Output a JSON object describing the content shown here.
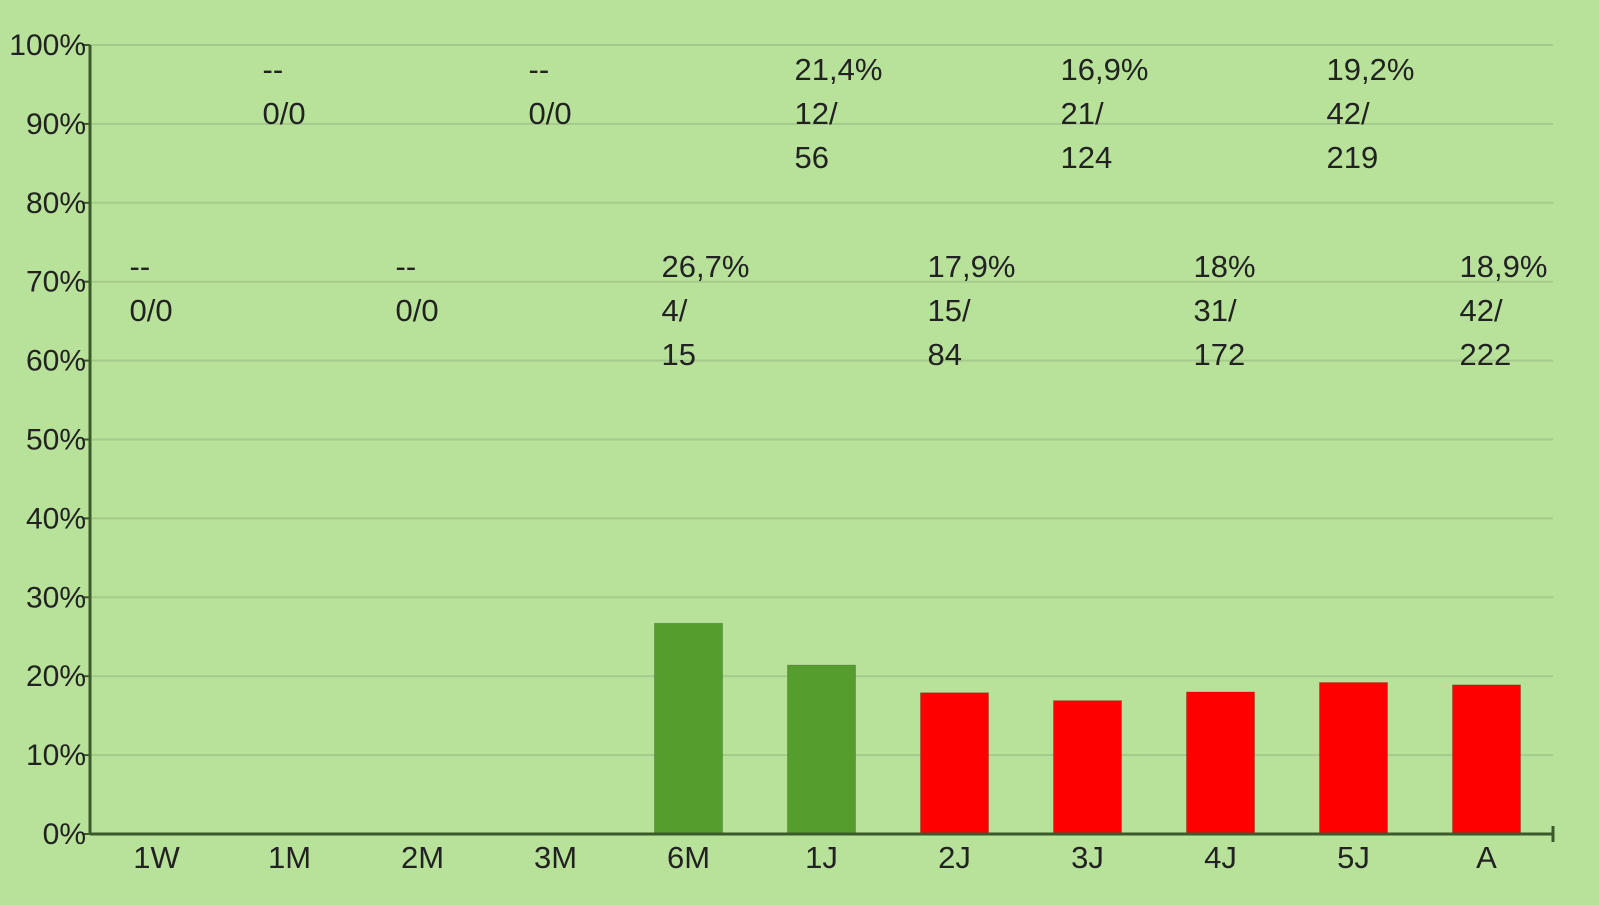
{
  "colors": {
    "background": "#b8e29a",
    "grid": "#a6c98c",
    "axis": "#3b5a2a",
    "bar_good": "#559e2e",
    "bar_bad": "#ff0000",
    "text": "#222222"
  },
  "chart_data": {
    "type": "bar",
    "categories": [
      "1W",
      "1M",
      "2M",
      "3M",
      "6M",
      "1J",
      "2J",
      "3J",
      "4J",
      "5J",
      "A"
    ],
    "values": [
      0,
      0,
      0,
      0,
      26.7,
      21.4,
      17.9,
      16.9,
      18,
      19.2,
      18.9
    ],
    "bar_status": [
      "none",
      "none",
      "none",
      "none",
      "good",
      "good",
      "bad",
      "bad",
      "bad",
      "bad",
      "bad"
    ],
    "percent_labels": [
      "--",
      "--",
      "--",
      "--",
      "26,7%",
      "21,4%",
      "17,9%",
      "16,9%",
      "18%",
      "19,2%",
      "18,9%"
    ],
    "ratio_labels": [
      "0/0",
      "0/0",
      "0/0",
      "0/0",
      "4/\n15",
      "12/\n56",
      "15/\n84",
      "21/\n124",
      "31/\n172",
      "42/\n219",
      "42/\n222"
    ],
    "label_rows": [
      "lower",
      "upper",
      "lower",
      "upper",
      "lower",
      "upper",
      "lower",
      "upper",
      "lower",
      "upper",
      "lower"
    ],
    "yticks": [
      "0%",
      "10%",
      "20%",
      "30%",
      "40%",
      "50%",
      "60%",
      "70%",
      "80%",
      "90%",
      "100%"
    ],
    "ylim": [
      0,
      100
    ],
    "grid": true,
    "title": "",
    "xlabel": "",
    "ylabel": ""
  }
}
